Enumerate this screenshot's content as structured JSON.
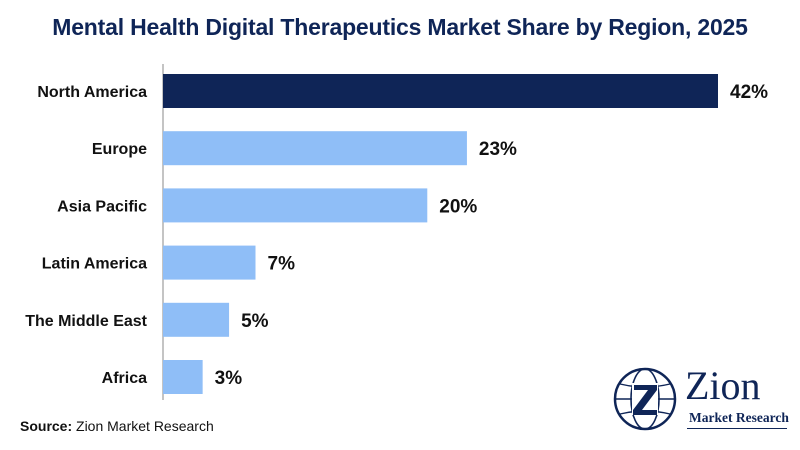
{
  "chart_data": {
    "type": "bar",
    "orientation": "horizontal",
    "title": "Mental Health Digital Therapeutics Market Share by Region, 2025",
    "categories": [
      "North America",
      "Europe",
      "Asia Pacific",
      "Latin America",
      "The Middle East",
      "Africa"
    ],
    "values": [
      42,
      23,
      20,
      7,
      5,
      3
    ],
    "value_labels": [
      "42%",
      "23%",
      "20%",
      "7%",
      "5%",
      "3%"
    ],
    "xlim": [
      0,
      44
    ],
    "grid": false,
    "colors": {
      "highlight": "#0f2557",
      "default": "#8fbef7",
      "axis": "#888888"
    }
  },
  "source": {
    "label": "Source:",
    "text": " Zion Market Research"
  },
  "logo": {
    "wordmark": "Zion",
    "tagline": "Market Research",
    "icon": "globe-z-icon"
  }
}
